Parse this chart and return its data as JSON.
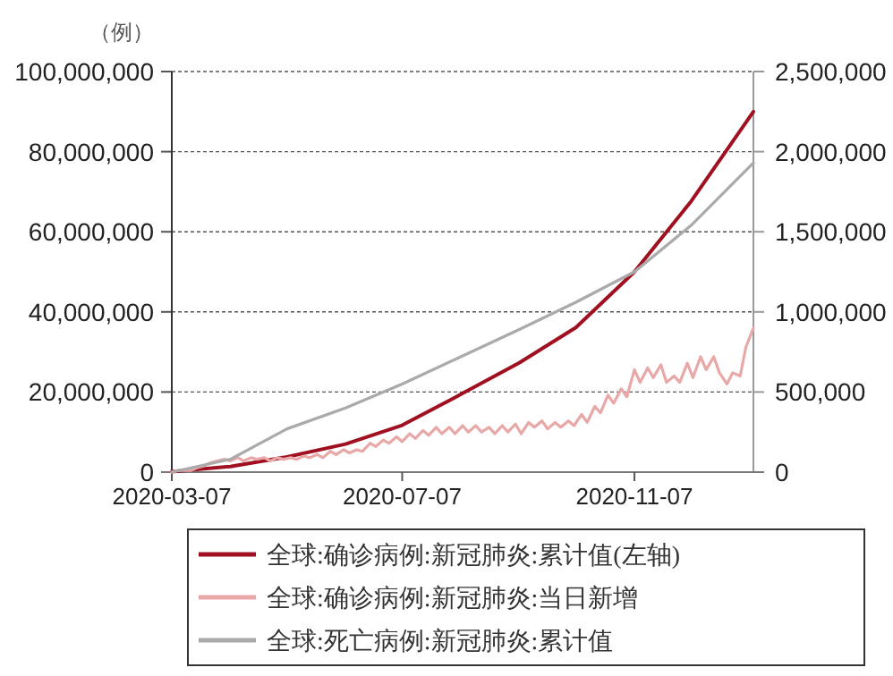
{
  "chart_data": {
    "type": "line",
    "ylabel": "（例）",
    "xlim": [
      "2020-03-07",
      "2021-01-09"
    ],
    "xticks": [
      "2020-03-07",
      "2020-07-07",
      "2020-11-07"
    ],
    "ylim": [
      0,
      100000000
    ],
    "yticks": [
      {
        "value": 0,
        "label": "0"
      },
      {
        "value": 20000000,
        "label": "20,000,000"
      },
      {
        "value": 40000000,
        "label": "40,000,000"
      },
      {
        "value": 60000000,
        "label": "60,000,000"
      },
      {
        "value": 80000000,
        "label": "80,000,000"
      },
      {
        "value": 100000000,
        "label": "100,000,000"
      }
    ],
    "y2lim": [
      0,
      2500000
    ],
    "y2ticks": [
      {
        "value": 0,
        "label": "0"
      },
      {
        "value": 500000,
        "label": "500,000"
      },
      {
        "value": 1000000,
        "label": "1,000,000"
      },
      {
        "value": 1500000,
        "label": "1,500,000"
      },
      {
        "value": 2000000,
        "label": "2,000,000"
      },
      {
        "value": 2500000,
        "label": "2,500,000"
      }
    ],
    "grid": "y",
    "legend": "bottom",
    "marker": "none",
    "line_style": "solid",
    "series": [
      {
        "name": "全球:确诊病例:新冠肺炎:累计值(左轴)",
        "color": "#a01020",
        "x": [
          "2020-03-07",
          "2020-04-07",
          "2020-05-07",
          "2020-06-07",
          "2020-07-07",
          "2020-08-07",
          "2020-09-07",
          "2020-10-07",
          "2020-11-07",
          "2020-12-07",
          "2021-01-09"
        ],
        "values": [
          100000,
          1400000,
          3800000,
          7000000,
          11700000,
          19400000,
          27300000,
          36100000,
          50000000,
          67600000,
          90000000
        ]
      },
      {
        "name": "全球:确诊病例:新冠肺炎:当日新增",
        "color": "#e8a8a8",
        "axis": "y2",
        "x": [
          "2020-03-07",
          "2020-03-10",
          "2020-03-14",
          "2020-03-17",
          "2020-03-21",
          "2020-03-24",
          "2020-03-28",
          "2020-03-31",
          "2020-04-04",
          "2020-04-07",
          "2020-04-11",
          "2020-04-14",
          "2020-04-18",
          "2020-04-21",
          "2020-04-25",
          "2020-04-28",
          "2020-05-02",
          "2020-05-05",
          "2020-05-09",
          "2020-05-12",
          "2020-05-16",
          "2020-05-19",
          "2020-05-23",
          "2020-05-26",
          "2020-05-30",
          "2020-06-02",
          "2020-06-06",
          "2020-06-09",
          "2020-06-13",
          "2020-06-16",
          "2020-06-20",
          "2020-06-23",
          "2020-06-27",
          "2020-06-30",
          "2020-07-04",
          "2020-07-07",
          "2020-07-11",
          "2020-07-14",
          "2020-07-18",
          "2020-07-21",
          "2020-07-25",
          "2020-07-28",
          "2020-08-01",
          "2020-08-04",
          "2020-08-08",
          "2020-08-11",
          "2020-08-15",
          "2020-08-18",
          "2020-08-22",
          "2020-08-25",
          "2020-08-29",
          "2020-09-01",
          "2020-09-05",
          "2020-09-08",
          "2020-09-12",
          "2020-09-15",
          "2020-09-19",
          "2020-09-22",
          "2020-09-26",
          "2020-09-29",
          "2020-10-03",
          "2020-10-06",
          "2020-10-10",
          "2020-10-13",
          "2020-10-17",
          "2020-10-20",
          "2020-10-24",
          "2020-10-27",
          "2020-10-31",
          "2020-11-03",
          "2020-11-07",
          "2020-11-10",
          "2020-11-14",
          "2020-11-17",
          "2020-11-21",
          "2020-11-24",
          "2020-11-28",
          "2020-12-01",
          "2020-12-05",
          "2020-12-08",
          "2020-12-12",
          "2020-12-15",
          "2020-12-19",
          "2020-12-22",
          "2020-12-26",
          "2020-12-29",
          "2021-01-02",
          "2021-01-05",
          "2021-01-09"
        ],
        "values": [
          0,
          10000,
          10000,
          10000,
          30000,
          40000,
          60000,
          70000,
          80000,
          70000,
          90000,
          70000,
          90000,
          80000,
          90000,
          70000,
          90000,
          80000,
          90000,
          80000,
          100000,
          90000,
          110000,
          90000,
          130000,
          110000,
          140000,
          120000,
          140000,
          130000,
          180000,
          160000,
          200000,
          180000,
          220000,
          190000,
          240000,
          210000,
          260000,
          230000,
          280000,
          240000,
          280000,
          240000,
          290000,
          250000,
          290000,
          250000,
          280000,
          240000,
          290000,
          250000,
          300000,
          240000,
          310000,
          280000,
          320000,
          270000,
          310000,
          280000,
          320000,
          290000,
          360000,
          310000,
          410000,
          370000,
          480000,
          430000,
          520000,
          470000,
          640000,
          560000,
          650000,
          590000,
          670000,
          560000,
          600000,
          560000,
          680000,
          590000,
          720000,
          640000,
          720000,
          620000,
          550000,
          620000,
          600000,
          780000,
          900000
        ]
      },
      {
        "name": "全球:死亡病例:新冠肺炎:累计值",
        "color": "#aaaaaa",
        "axis": "y2",
        "x": [
          "2020-03-07",
          "2020-04-07",
          "2020-05-07",
          "2020-06-07",
          "2020-07-07",
          "2020-08-07",
          "2020-09-07",
          "2020-10-07",
          "2020-11-07",
          "2020-12-07",
          "2021-01-09"
        ],
        "values": [
          0,
          80000,
          270000,
          400000,
          550000,
          720000,
          890000,
          1060000,
          1250000,
          1540000,
          1930000
        ]
      }
    ]
  }
}
